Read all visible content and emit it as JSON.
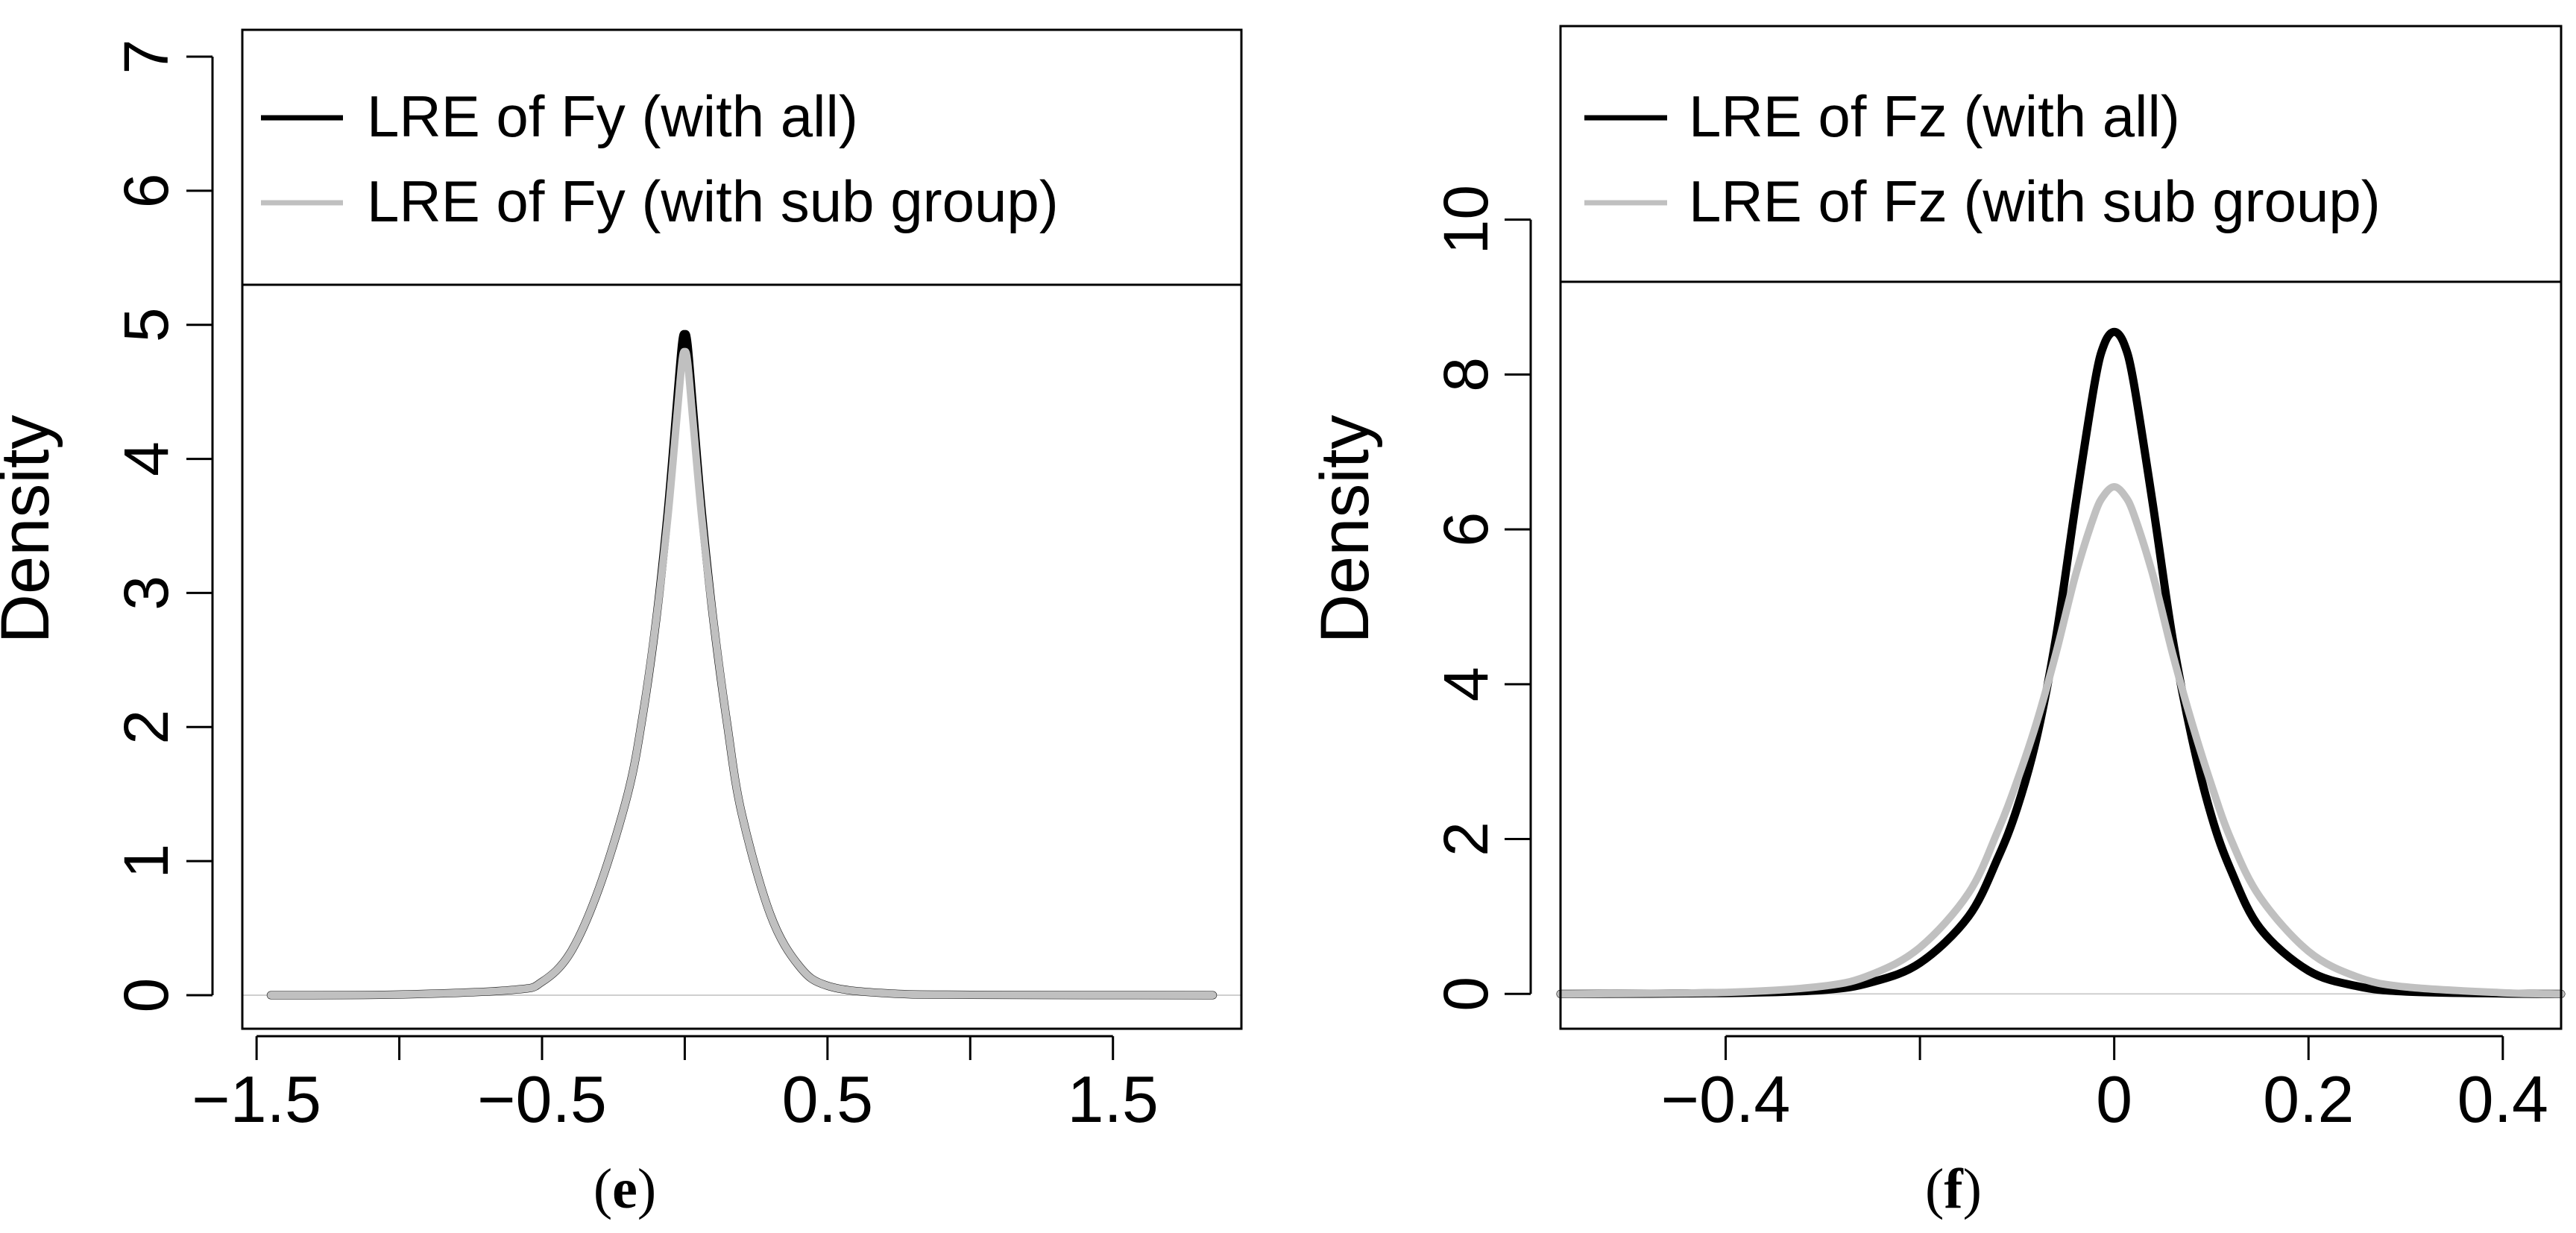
{
  "colors": {
    "all": "#000000",
    "sub_group": "#c0c0c0",
    "frame": "#000000",
    "baseline": "#cfcfcf"
  },
  "chart_data": [
    {
      "type": "line",
      "panel_label": "(e)",
      "xlabel": "",
      "ylabel": "Density",
      "xlim": [
        -1.55,
        1.95
      ],
      "ylim": [
        -0.25,
        7.2
      ],
      "x_ticks": [
        -1.5,
        -1.0,
        -0.5,
        0,
        0.5,
        1.0,
        1.5
      ],
      "x_tick_labels": [
        "−1.5",
        "",
        "−0.5",
        "",
        "0.5",
        "",
        "1.5"
      ],
      "y_ticks": [
        0,
        1,
        2,
        3,
        4,
        5,
        6,
        7
      ],
      "y_tick_labels": [
        "0",
        "1",
        "2",
        "3",
        "4",
        "5",
        "6",
        "7"
      ],
      "legend": {
        "position": "top",
        "entries": [
          "LRE of Fy (with all)",
          "LRE of Fy (with sub group)"
        ]
      },
      "series": [
        {
          "name": "LRE of Fy (with all)",
          "color": "#000000",
          "x": [
            -1.45,
            -1.0,
            -0.6,
            -0.5,
            -0.4,
            -0.3,
            -0.2,
            -0.15,
            -0.1,
            -0.06,
            -0.03,
            -0.01,
            0.0,
            0.01,
            0.03,
            0.06,
            0.1,
            0.15,
            0.2,
            0.3,
            0.4,
            0.5,
            0.7,
            1.0,
            1.85
          ],
          "values": [
            0,
            0.005,
            0.04,
            0.1,
            0.32,
            0.8,
            1.5,
            2.05,
            2.8,
            3.6,
            4.35,
            4.85,
            4.93,
            4.85,
            4.35,
            3.6,
            2.8,
            2.0,
            1.35,
            0.6,
            0.22,
            0.07,
            0.015,
            0.003,
            0
          ]
        },
        {
          "name": "LRE of Fy (with sub group)",
          "color": "#c0c0c0",
          "x": [
            -1.45,
            -1.0,
            -0.6,
            -0.5,
            -0.4,
            -0.3,
            -0.2,
            -0.15,
            -0.1,
            -0.06,
            -0.03,
            -0.01,
            0.0,
            0.01,
            0.03,
            0.06,
            0.1,
            0.15,
            0.2,
            0.3,
            0.4,
            0.5,
            0.7,
            1.0,
            1.85
          ],
          "values": [
            0,
            0.005,
            0.04,
            0.1,
            0.32,
            0.8,
            1.5,
            2.05,
            2.8,
            3.55,
            4.25,
            4.72,
            4.8,
            4.72,
            4.25,
            3.55,
            2.8,
            2.0,
            1.35,
            0.6,
            0.22,
            0.07,
            0.015,
            0.003,
            0
          ]
        }
      ]
    },
    {
      "type": "line",
      "panel_label": "(f)",
      "xlabel": "",
      "ylabel": "Density",
      "xlim": [
        -0.57,
        0.46
      ],
      "ylim": [
        -0.45,
        12.5
      ],
      "x_ticks": [
        -0.4,
        -0.2,
        0,
        0.2,
        0.4
      ],
      "x_tick_labels": [
        "−0.4",
        "",
        "0",
        "0.2",
        "0.4"
      ],
      "y_ticks": [
        0,
        2,
        4,
        6,
        8,
        10
      ],
      "y_tick_labels": [
        "0",
        "2",
        "4",
        "6",
        "8",
        "10"
      ],
      "legend": {
        "position": "top",
        "entries": [
          "LRE of Fz (with all)",
          "LRE of Fz (with sub group)"
        ]
      },
      "series": [
        {
          "name": "LRE of Fz (with all)",
          "color": "#000000",
          "x": [
            -0.57,
            -0.4,
            -0.3,
            -0.25,
            -0.2,
            -0.15,
            -0.12,
            -0.1,
            -0.08,
            -0.06,
            -0.04,
            -0.02,
            -0.01,
            0.0,
            0.01,
            0.02,
            0.04,
            0.06,
            0.08,
            0.1,
            0.12,
            0.15,
            0.2,
            0.25,
            0.3,
            0.4,
            0.46
          ],
          "values": [
            0,
            0.01,
            0.05,
            0.15,
            0.4,
            1.0,
            1.75,
            2.4,
            3.3,
            4.6,
            6.3,
            7.9,
            8.4,
            8.55,
            8.4,
            7.9,
            6.3,
            4.6,
            3.3,
            2.3,
            1.6,
            0.85,
            0.3,
            0.1,
            0.03,
            0.005,
            0
          ]
        },
        {
          "name": "LRE of Fz (with sub group)",
          "color": "#c0c0c0",
          "x": [
            -0.57,
            -0.4,
            -0.3,
            -0.25,
            -0.2,
            -0.15,
            -0.12,
            -0.1,
            -0.08,
            -0.06,
            -0.04,
            -0.02,
            -0.01,
            0.0,
            0.01,
            0.02,
            0.04,
            0.06,
            0.08,
            0.1,
            0.12,
            0.15,
            0.2,
            0.25,
            0.3,
            0.4,
            0.46
          ],
          "values": [
            0,
            0.02,
            0.1,
            0.25,
            0.6,
            1.3,
            2.1,
            2.75,
            3.5,
            4.4,
            5.4,
            6.2,
            6.45,
            6.55,
            6.45,
            6.2,
            5.4,
            4.4,
            3.5,
            2.7,
            2.0,
            1.25,
            0.55,
            0.22,
            0.09,
            0.015,
            0
          ]
        }
      ]
    }
  ]
}
